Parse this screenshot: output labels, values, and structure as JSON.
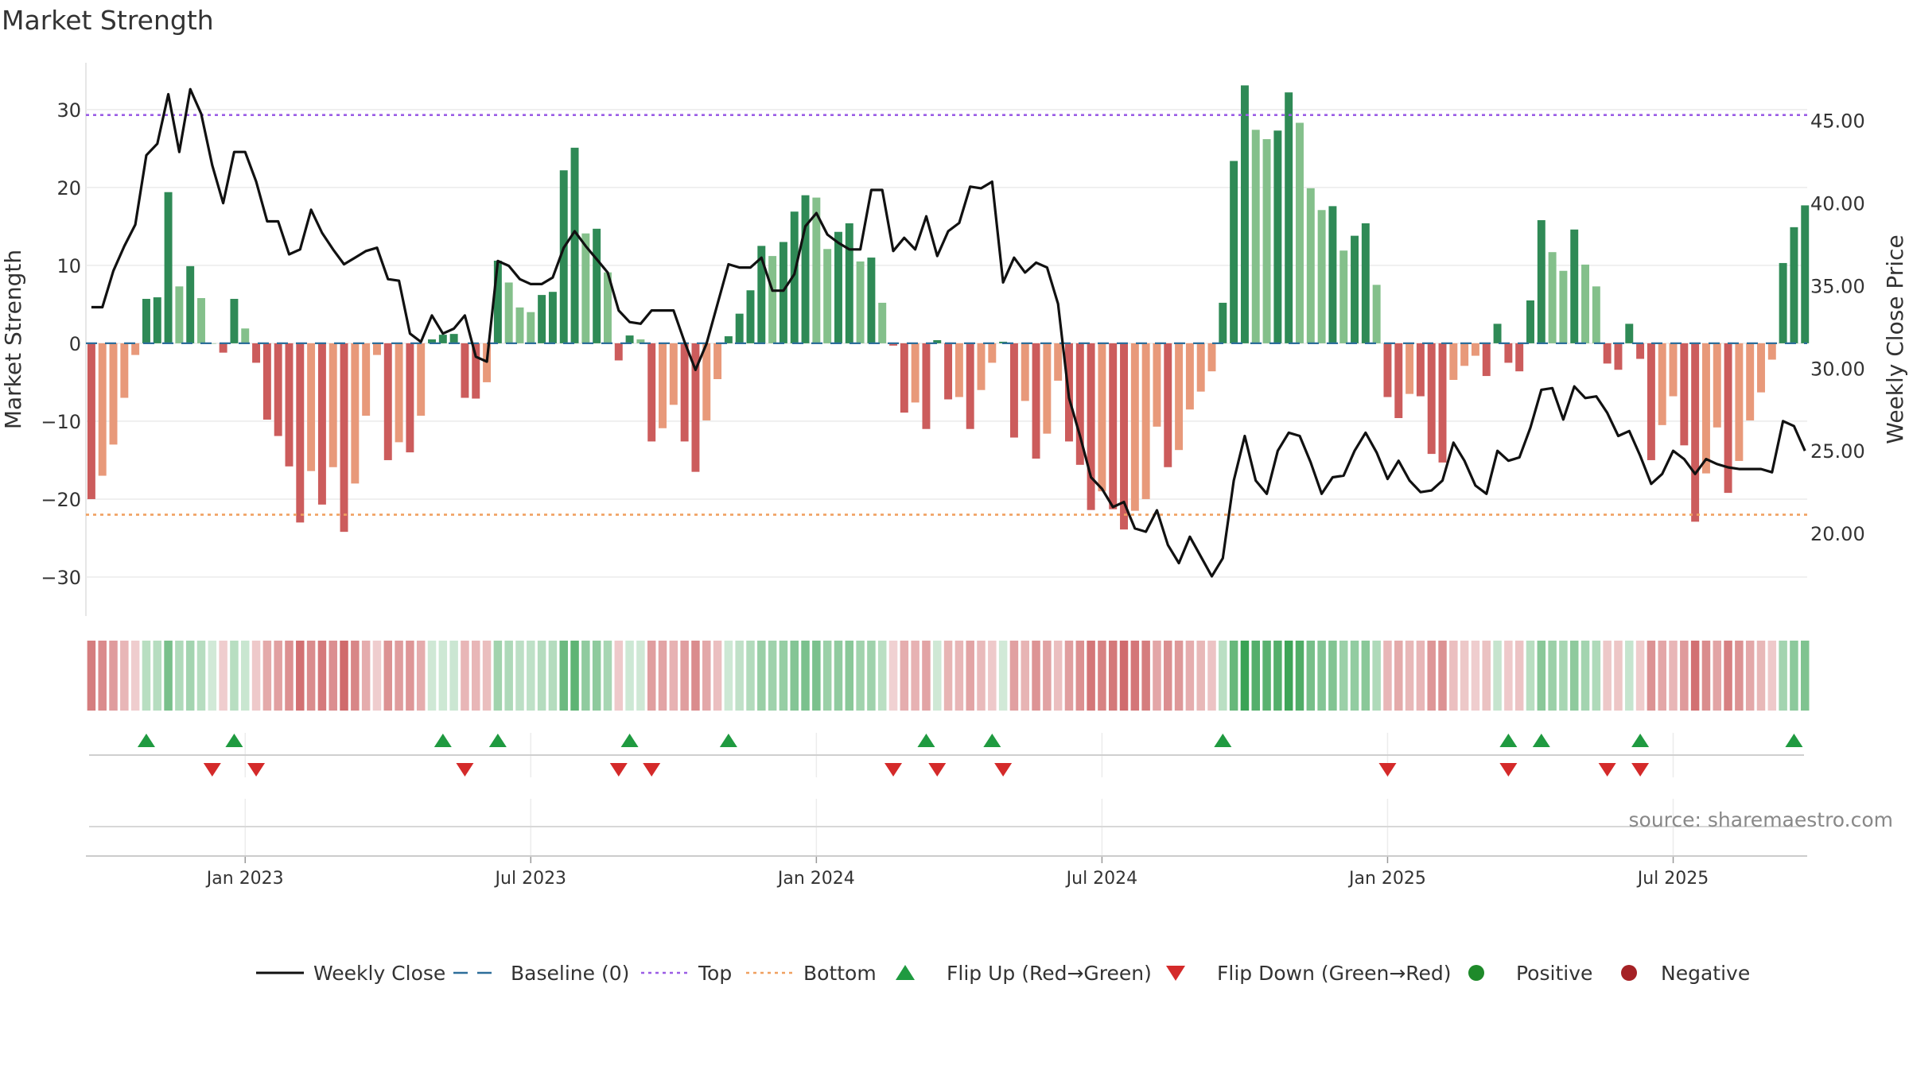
{
  "chart_data": {
    "type": "bar",
    "title": "Market Strength",
    "ylabel_left": "Market Strength",
    "ylabel_right": "Weekly Close Price",
    "ylim_left": [
      -35,
      36
    ],
    "ylim_right": [
      15.0,
      48.5
    ],
    "left_ticks": [
      {
        "v": 30,
        "label": "30"
      },
      {
        "v": 20,
        "label": "20"
      },
      {
        "v": 10,
        "label": "10"
      },
      {
        "v": 0,
        "label": "0"
      },
      {
        "v": -10,
        "label": "−10"
      },
      {
        "v": -20,
        "label": "−20"
      },
      {
        "v": -30,
        "label": "−30"
      }
    ],
    "right_ticks": [
      {
        "v": 45,
        "label": "45.00"
      },
      {
        "v": 40,
        "label": "40.00"
      },
      {
        "v": 35,
        "label": "35.00"
      },
      {
        "v": 30,
        "label": "30.00"
      },
      {
        "v": 25,
        "label": "25.00"
      },
      {
        "v": 20,
        "label": "20.00"
      }
    ],
    "x_ticks": [
      {
        "week": 14,
        "label": "Jan 2023"
      },
      {
        "week": 40,
        "label": "Jul 2023"
      },
      {
        "week": 66,
        "label": "Jan 2024"
      },
      {
        "week": 92,
        "label": "Jul 2024"
      },
      {
        "week": 118,
        "label": "Jan 2025"
      },
      {
        "week": 144,
        "label": "Jul 2025"
      }
    ],
    "top_level": 29.3,
    "bottom_level": -22.0,
    "strength": [
      -20,
      -17,
      -13,
      -7,
      -1.5,
      5.7,
      5.9,
      19.4,
      7.3,
      9.9,
      5.8,
      0,
      -1.2,
      5.7,
      1.9,
      -2.5,
      -9.8,
      -11.9,
      -15.8,
      -23,
      -16.4,
      -20.7,
      -15.9,
      -24.2,
      -18,
      -9.3,
      -1.5,
      -15,
      -12.7,
      -14,
      -9.3,
      0.5,
      1.1,
      1.2,
      -7,
      -7.1,
      -5,
      10.6,
      7.8,
      4.6,
      4,
      6.2,
      6.6,
      22.2,
      25.1,
      14.1,
      14.7,
      9.1,
      -2.2,
      1,
      0.5,
      -12.6,
      -10.9,
      -7.9,
      -12.6,
      -16.5,
      -9.9,
      -4.6,
      0.9,
      3.8,
      6.8,
      12.5,
      11.2,
      13,
      16.9,
      19,
      18.7,
      12.1,
      14.3,
      15.4,
      10.5,
      11,
      5.2,
      -0.3,
      -8.9,
      -7.6,
      -11,
      0.4,
      -7.2,
      -6.9,
      -11,
      -6,
      -2.5,
      0.2,
      -12.1,
      -7.4,
      -14.8,
      -11.6,
      -4.8,
      -12.6,
      -15.6,
      -21.4,
      -19,
      -21.3,
      -23.9,
      -21.5,
      -20,
      -10.7,
      -15.9,
      -13.7,
      -8.5,
      -6.2,
      -3.6,
      5.2,
      23.4,
      33.1,
      27.4,
      26.2,
      27.3,
      32.2,
      28.3,
      19.9,
      17.1,
      17.6,
      11.9,
      13.8,
      15.4,
      7.5,
      -6.9,
      -9.6,
      -6.5,
      -6.8,
      -14.2,
      -15.3,
      -4.7,
      -2.9,
      -1.6,
      -4.2,
      2.5,
      -2.5,
      -3.6,
      5.5,
      15.8,
      11.7,
      9.3,
      14.6,
      10.1,
      7.3,
      -2.6,
      -3.4,
      2.5,
      -2,
      -15,
      -10.5,
      -6.8,
      -13.1,
      -22.9,
      -16.7,
      -10.8,
      -19.2,
      -15.1,
      -9.9,
      -6.3,
      -2.1,
      10.3,
      14.9,
      17.7
    ],
    "weekly_close": [
      33.7,
      33.7,
      35.9,
      37.4,
      38.7,
      42.9,
      43.6,
      46.6,
      43.1,
      46.9,
      45.4,
      42.3,
      40.0,
      43.1,
      43.1,
      41.3,
      38.9,
      38.9,
      36.9,
      37.2,
      39.6,
      38.2,
      37.2,
      36.3,
      36.7,
      37.1,
      37.3,
      35.4,
      35.3,
      32.1,
      31.6,
      33.2,
      32.1,
      32.4,
      33.2,
      30.7,
      30.4,
      36.5,
      36.2,
      35.4,
      35.1,
      35.1,
      35.5,
      37.3,
      38.3,
      37.4,
      36.6,
      35.8,
      33.5,
      32.8,
      32.7,
      33.5,
      33.5,
      33.5,
      31.6,
      29.9,
      31.5,
      33.9,
      36.3,
      36.1,
      36.1,
      36.7,
      34.7,
      34.7,
      35.7,
      38.6,
      39.4,
      38.1,
      37.6,
      37.2,
      37.2,
      40.8,
      40.8,
      37.1,
      37.9,
      37.2,
      39.2,
      36.8,
      38.3,
      38.8,
      41.0,
      40.9,
      41.3,
      35.2,
      36.7,
      35.8,
      36.4,
      36.1,
      33.9,
      28.2,
      25.9,
      23.4,
      22.7,
      21.6,
      21.9,
      20.3,
      20.1,
      21.4,
      19.3,
      18.2,
      19.8,
      18.6,
      17.4,
      18.5,
      23.2,
      25.9,
      23.2,
      22.4,
      25.0,
      26.1,
      25.9,
      24.3,
      22.4,
      23.4,
      23.5,
      25.0,
      26.1,
      24.9,
      23.3,
      24.4,
      23.2,
      22.5,
      22.6,
      23.2,
      25.5,
      24.4,
      22.9,
      22.4,
      25.0,
      24.4,
      24.6,
      26.4,
      28.7,
      28.8,
      26.9,
      28.9,
      28.2,
      28.3,
      27.3,
      25.9,
      26.2,
      24.7,
      23.0,
      23.6,
      25.0,
      24.5,
      23.6,
      24.5,
      24.2,
      24.0,
      23.9,
      23.9,
      23.9,
      23.7,
      26.8,
      26.5,
      25.0
    ],
    "flip_up_weeks": [
      5,
      13,
      32,
      37,
      49,
      58,
      76,
      82,
      103,
      129,
      132,
      141,
      155
    ],
    "flip_down_weeks": [
      11,
      15,
      34,
      48,
      51,
      73,
      77,
      83,
      118,
      129,
      138,
      141
    ],
    "colors": {
      "pos_dark": "#2f8a56",
      "pos_light": "#84c08b",
      "neg_dark": "#cc5c5c",
      "neg_light": "#e8997a",
      "close_line": "#111111",
      "baseline": "#2d6e9a",
      "top_line": "#9b5de5",
      "bottom_line": "#f0a060",
      "flip_up": "#1f9a40",
      "flip_down": "#d42a2a",
      "positive": "#1e8a2a",
      "negative": "#a52125",
      "grid": "#ebebeb"
    },
    "legend": [
      {
        "key": "close",
        "label": "Weekly Close"
      },
      {
        "key": "baseline",
        "label": "Baseline (0)"
      },
      {
        "key": "top",
        "label": "Top"
      },
      {
        "key": "bottom",
        "label": "Bottom"
      },
      {
        "key": "flip_up",
        "label": "Flip Up (Red→Green)"
      },
      {
        "key": "flip_down",
        "label": "Flip Down (Green→Red)"
      },
      {
        "key": "positive",
        "label": "Positive"
      },
      {
        "key": "negative",
        "label": "Negative"
      }
    ],
    "source": "source: sharemaestro.com"
  }
}
